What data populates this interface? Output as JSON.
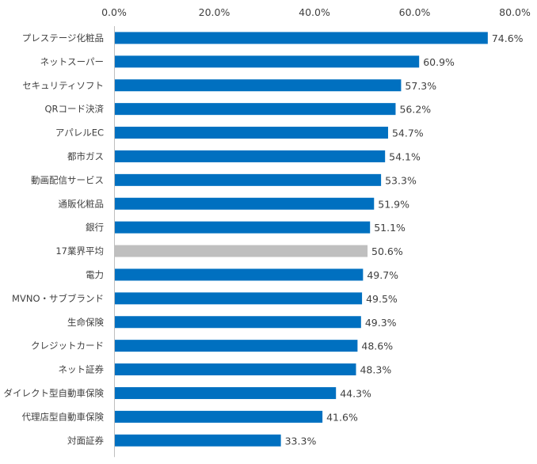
{
  "chart_data": {
    "type": "bar",
    "orientation": "horizontal",
    "title": "",
    "xlabel": "",
    "ylabel": "",
    "xlim": [
      0,
      80
    ],
    "ticks": [
      "0.0%",
      "20.0%",
      "40.0%",
      "60.0%",
      "80.0%"
    ],
    "tick_values": [
      0,
      20,
      40,
      60,
      80
    ],
    "categories": [
      "プレステージ化粧品",
      "ネットスーパー",
      "セキュリティソフト",
      "QRコード決済",
      "アパレルEC",
      "都市ガス",
      "動画配信サービス",
      "通販化粧品",
      "銀行",
      "17業界平均",
      "電力",
      "MVNO・サブブランド",
      "生命保険",
      "クレジットカード",
      "ネット証券",
      "ダイレクト型自動車保険",
      "代理店型自動車保険",
      "対面証券"
    ],
    "values": [
      74.6,
      60.9,
      57.3,
      56.2,
      54.7,
      54.1,
      53.3,
      51.9,
      51.1,
      50.6,
      49.7,
      49.5,
      49.3,
      48.6,
      48.3,
      44.3,
      41.6,
      33.3
    ],
    "value_labels": [
      "74.6%",
      "60.9%",
      "57.3%",
      "56.2%",
      "54.7%",
      "54.1%",
      "53.3%",
      "51.9%",
      "51.1%",
      "50.6%",
      "49.7%",
      "49.5%",
      "49.3%",
      "48.6%",
      "48.3%",
      "44.3%",
      "41.6%",
      "33.3%"
    ],
    "highlight_index": 9,
    "bar_color": "#0070C0",
    "highlight_color": "#BFBFBF",
    "axis_color": "#BFBFBF",
    "grid": false
  }
}
